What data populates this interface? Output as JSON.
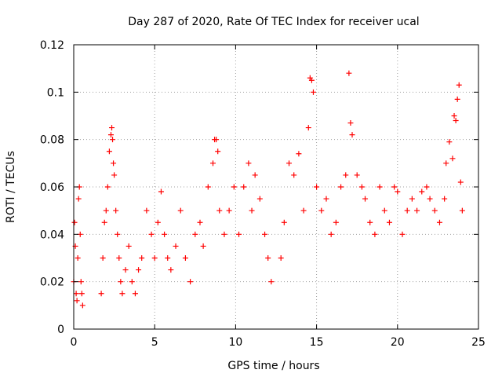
{
  "chart_data": {
    "type": "scatter",
    "title": "Day 287 of 2020, Rate Of TEC Index for receiver ucal",
    "xlabel": "GPS time / hours",
    "ylabel": "ROTI / TECUs",
    "xlim": [
      0,
      25
    ],
    "ylim": [
      0,
      0.12
    ],
    "x_ticks": [
      0,
      5,
      10,
      15,
      20,
      25
    ],
    "x_tick_labels": [
      "0",
      "5",
      "10",
      "15",
      "20",
      "25"
    ],
    "y_ticks": [
      0,
      0.02,
      0.04,
      0.06,
      0.08,
      0.1,
      0.12
    ],
    "y_tick_labels": [
      "0",
      "0.02",
      "0.04",
      "0.06",
      "0.08",
      "0.1",
      "0.12"
    ],
    "grid": true,
    "marker": "+",
    "color": "#ff0000",
    "series": [
      {
        "x": [
          0.0,
          0.05,
          0.1,
          0.15,
          0.2,
          0.25,
          0.3,
          0.35,
          0.4,
          0.45,
          0.5,
          0.55,
          1.7,
          1.8,
          1.9,
          2.0,
          2.1,
          2.2,
          2.3,
          2.35,
          2.4,
          2.45,
          2.5,
          2.6,
          2.7,
          2.8,
          2.9,
          3.0,
          3.2,
          3.4,
          3.6,
          3.8,
          4.0,
          4.2,
          4.5,
          4.8,
          5.0,
          5.2,
          5.4,
          5.6,
          5.8,
          6.0,
          6.3,
          6.6,
          6.9,
          7.2,
          7.5,
          7.8,
          8.0,
          8.3,
          8.6,
          8.7,
          8.8,
          8.9,
          9.0,
          9.3,
          9.6,
          9.9,
          10.2,
          10.5,
          10.8,
          11.0,
          11.2,
          11.5,
          11.8,
          12.0,
          12.2,
          12.8,
          13.0,
          13.3,
          13.6,
          13.9,
          14.2,
          14.5,
          14.6,
          14.7,
          14.8,
          15.0,
          15.3,
          15.6,
          15.9,
          16.2,
          16.5,
          16.8,
          17.0,
          17.1,
          17.2,
          17.5,
          17.8,
          18.0,
          18.3,
          18.6,
          18.9,
          19.2,
          19.5,
          19.8,
          20.0,
          20.3,
          20.6,
          20.9,
          21.2,
          21.5,
          21.8,
          22.0,
          22.3,
          22.6,
          22.9,
          23.0,
          23.2,
          23.4,
          23.5,
          23.6,
          23.7,
          23.8,
          23.9,
          24.0
        ],
        "y": [
          0.02,
          0.045,
          0.035,
          0.015,
          0.012,
          0.03,
          0.055,
          0.06,
          0.04,
          0.02,
          0.015,
          0.01,
          0.015,
          0.03,
          0.045,
          0.05,
          0.06,
          0.075,
          0.082,
          0.085,
          0.08,
          0.07,
          0.065,
          0.05,
          0.04,
          0.03,
          0.02,
          0.015,
          0.025,
          0.035,
          0.02,
          0.015,
          0.025,
          0.03,
          0.05,
          0.04,
          0.03,
          0.045,
          0.058,
          0.04,
          0.03,
          0.025,
          0.035,
          0.05,
          0.03,
          0.02,
          0.04,
          0.045,
          0.035,
          0.06,
          0.07,
          0.08,
          0.08,
          0.075,
          0.05,
          0.04,
          0.05,
          0.06,
          0.04,
          0.06,
          0.07,
          0.05,
          0.065,
          0.055,
          0.04,
          0.03,
          0.02,
          0.03,
          0.045,
          0.07,
          0.065,
          0.074,
          0.05,
          0.085,
          0.106,
          0.105,
          0.1,
          0.06,
          0.05,
          0.055,
          0.04,
          0.045,
          0.06,
          0.065,
          0.108,
          0.087,
          0.082,
          0.065,
          0.06,
          0.055,
          0.045,
          0.04,
          0.06,
          0.05,
          0.045,
          0.06,
          0.058,
          0.04,
          0.05,
          0.055,
          0.05,
          0.058,
          0.06,
          0.055,
          0.05,
          0.045,
          0.055,
          0.07,
          0.079,
          0.072,
          0.09,
          0.088,
          0.097,
          0.103,
          0.062,
          0.05
        ]
      }
    ]
  }
}
